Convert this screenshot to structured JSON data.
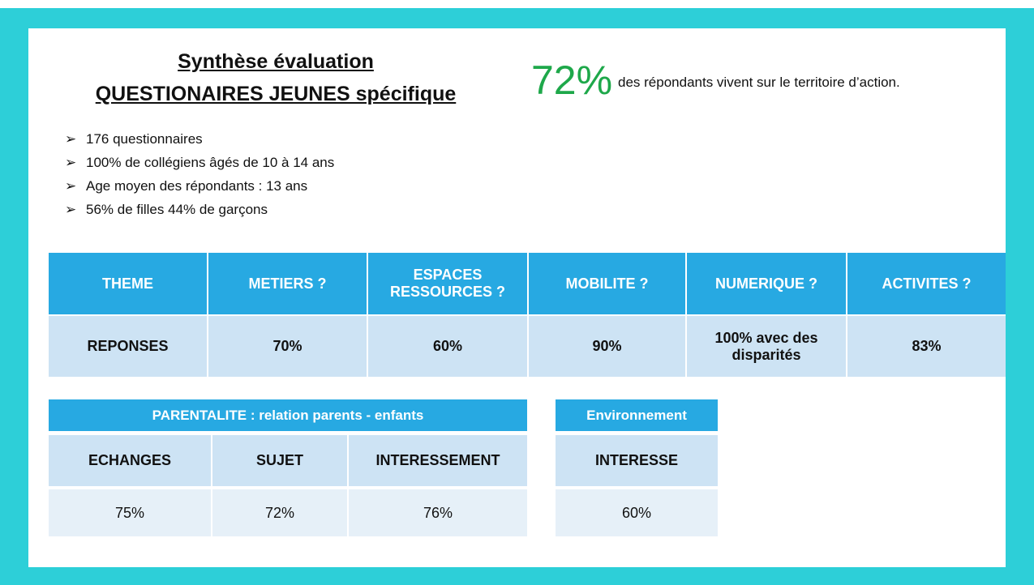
{
  "header": {
    "title_line1": "Synthèse évaluation",
    "title_line2": "QUESTIONAIRES JEUNES spécifique"
  },
  "highlight": {
    "value": "72%",
    "text": "des répondants vivent sur le territoire d’action."
  },
  "bullets": [
    "176 questionnaires",
    "100% de collégiens âgés de 10 à 14 ans",
    "Age moyen des répondants : 13 ans",
    "56% de filles 44% de garçons"
  ],
  "table": {
    "headers": [
      "THEME",
      "METIERS ?",
      "ESPACES RESSOURCES ?",
      "MOBILITE ?",
      "NUMERIQUE ?",
      "ACTIVITES ?"
    ],
    "rows": [
      [
        "REPONSES",
        "70%",
        "60%",
        "90%",
        "100% avec des disparités",
        "83%"
      ]
    ]
  },
  "parentalite": {
    "title": "PARENTALITE : relation parents - enfants",
    "columns": [
      "ECHANGES",
      "SUJET",
      "INTERESSEMENT"
    ],
    "values": [
      "75%",
      "72%",
      "76%"
    ]
  },
  "environnement": {
    "title": "Environnement",
    "columns": [
      "INTERESSE"
    ],
    "values": [
      "60%"
    ]
  }
}
